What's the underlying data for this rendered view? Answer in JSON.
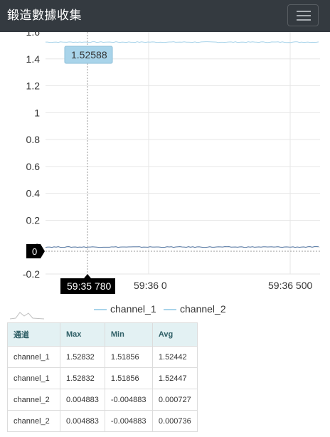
{
  "navbar": {
    "title": "鍛造數據收集"
  },
  "chart_data": {
    "type": "line",
    "y_ticks": [
      "1.6",
      "1.4",
      "1.2",
      "1",
      "0.8",
      "0.6",
      "0.4",
      "0.2",
      "0",
      "-0.2"
    ],
    "x_ticks": [
      "59:35 780",
      "59:36 0",
      "59:36 500"
    ],
    "ylim": [
      -0.2,
      1.6
    ],
    "grid": true,
    "legend_position": "bottom",
    "series": [
      {
        "name": "channel_1",
        "color": "#a9d4ea",
        "approx_value": 1.525
      },
      {
        "name": "channel_2",
        "color": "#5b7ca6",
        "approx_value": 0.0007
      }
    ],
    "crosshair": {
      "x_label": "59:35 780",
      "y_label": "0",
      "tooltip_value": "1.52588"
    }
  },
  "stats": {
    "headers": [
      "通道",
      "Max",
      "Min",
      "Avg"
    ],
    "rows": [
      [
        "channel_1",
        "1.52832",
        "1.51856",
        "1.52442"
      ],
      [
        "channel_1",
        "1.52832",
        "1.51856",
        "1.52447"
      ],
      [
        "channel_2",
        "0.004883",
        "-0.004883",
        "0.000727"
      ],
      [
        "channel_2",
        "0.004883",
        "-0.004883",
        "0.000736"
      ]
    ]
  }
}
